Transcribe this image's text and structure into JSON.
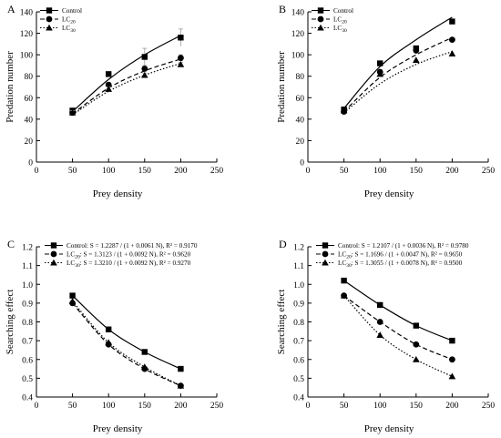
{
  "chart_data": [
    {
      "panel": "A",
      "type": "line",
      "xlabel": "Prey density",
      "ylabel": "Predation number",
      "xlim": [
        0,
        250
      ],
      "ylim": [
        0,
        140
      ],
      "xticks": [
        0,
        50,
        100,
        150,
        200,
        250
      ],
      "yticks": [
        0,
        20,
        40,
        60,
        80,
        100,
        120,
        140
      ],
      "legend_position": "top-left",
      "x": [
        50,
        100,
        150,
        200
      ],
      "series": [
        {
          "name": "Control",
          "marker": "square",
          "line": "solid",
          "values": [
            48,
            82,
            98,
            116
          ],
          "errors": [
            2,
            2,
            8,
            8
          ],
          "fit": [
            47,
            77,
            100,
            118
          ]
        },
        {
          "name": "LC20",
          "marker": "circle",
          "line": "dashed",
          "values": [
            46,
            72,
            87,
            97
          ],
          "errors": [
            2,
            2,
            3,
            3
          ],
          "fit": [
            45,
            69,
            85,
            96
          ]
        },
        {
          "name": "LC30",
          "marker": "triangle",
          "line": "dotted",
          "values": [
            46,
            68,
            81,
            91
          ],
          "errors": [
            2,
            2,
            2,
            2
          ],
          "fit": [
            44,
            66,
            81,
            92
          ]
        }
      ]
    },
    {
      "panel": "B",
      "type": "line",
      "xlabel": "Prey density",
      "ylabel": "Predation number",
      "xlim": [
        0,
        250
      ],
      "ylim": [
        0,
        140
      ],
      "xticks": [
        0,
        50,
        100,
        150,
        200,
        250
      ],
      "yticks": [
        0,
        20,
        40,
        60,
        80,
        100,
        120,
        140
      ],
      "legend_position": "top-left",
      "x": [
        50,
        100,
        150,
        200
      ],
      "series": [
        {
          "name": "Control",
          "marker": "square",
          "line": "solid",
          "values": [
            49,
            92,
            106,
            131
          ],
          "errors": [],
          "fit": [
            50,
            89,
            114,
            135
          ]
        },
        {
          "name": "LC20",
          "marker": "circle",
          "line": "dashed",
          "values": [
            47,
            84,
            104,
            114
          ],
          "errors": [],
          "fit": [
            47,
            79,
            100,
            116
          ]
        },
        {
          "name": "LC30",
          "marker": "triangle",
          "line": "dotted",
          "values": [
            48,
            82,
            95,
            101
          ],
          "errors": [],
          "fit": [
            46,
            73,
            91,
            103
          ]
        }
      ]
    },
    {
      "panel": "C",
      "type": "line",
      "xlabel": "Prey density",
      "ylabel": "Searching effect",
      "xlim": [
        0,
        250
      ],
      "ylim": [
        0.4,
        1.2
      ],
      "xticks": [
        0,
        50,
        100,
        150,
        200,
        250
      ],
      "yticks": [
        0.4,
        0.5,
        0.6,
        0.7,
        0.8,
        0.9,
        1.0,
        1.1,
        1.2
      ],
      "legend_position": "top-left",
      "x": [
        50,
        100,
        150,
        200
      ],
      "series": [
        {
          "name": "Control",
          "marker": "square",
          "line": "solid",
          "values": [
            0.94,
            0.76,
            0.64,
            0.55
          ],
          "equation": ": S = 1.2287 / (1 + 0.0061 N), R² = 0.9170"
        },
        {
          "name": "LC20",
          "marker": "circle",
          "line": "dashed",
          "values": [
            0.9,
            0.68,
            0.55,
            0.46
          ],
          "equation": ": S = 1.3123 / (1 + 0.0092 N), R² = 0.9620"
        },
        {
          "name": "LC30",
          "marker": "triangle",
          "line": "dotted",
          "values": [
            0.91,
            0.69,
            0.56,
            0.46
          ],
          "equation": ": S = 1.3210 / (1 + 0.0092 N), R² = 0.9270"
        }
      ]
    },
    {
      "panel": "D",
      "type": "line",
      "xlabel": "Prey density",
      "ylabel": "Searching effect",
      "xlim": [
        0,
        250
      ],
      "ylim": [
        0.4,
        1.2
      ],
      "xticks": [
        0,
        50,
        100,
        150,
        200,
        250
      ],
      "yticks": [
        0.4,
        0.5,
        0.6,
        0.7,
        0.8,
        0.9,
        1.0,
        1.1,
        1.2
      ],
      "legend_position": "top-left",
      "x": [
        50,
        100,
        150,
        200
      ],
      "series": [
        {
          "name": "Control",
          "marker": "square",
          "line": "solid",
          "values": [
            1.02,
            0.89,
            0.78,
            0.7
          ],
          "equation": ": S = 1.2107 / (1 + 0.0036 N), R² = 0.9780"
        },
        {
          "name": "LC20",
          "marker": "circle",
          "line": "dashed",
          "values": [
            0.94,
            0.8,
            0.68,
            0.6
          ],
          "equation": ": S = 1.1696 / (1 + 0.0047 N), R² = 0.9650"
        },
        {
          "name": "LC30",
          "marker": "triangle",
          "line": "dotted",
          "values": [
            0.94,
            0.73,
            0.6,
            0.51
          ],
          "equation": ": S = 1.3055 / (1 + 0.0078 N), R² = 0.9500"
        }
      ]
    }
  ]
}
